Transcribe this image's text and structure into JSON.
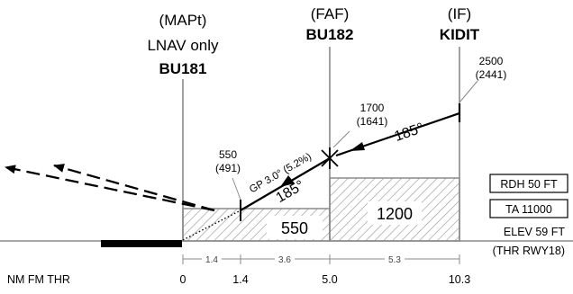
{
  "fixes": {
    "mapt": {
      "role": "(MAPt)",
      "note": "LNAV only",
      "name": "BU181",
      "altitude": "550",
      "altitude_paren": "(491)"
    },
    "faf": {
      "role": "(FAF)",
      "name": "BU182",
      "altitude": "1700",
      "altitude_paren": "(1641)"
    },
    "if": {
      "role": "(IF)",
      "name": "KIDIT",
      "altitude": "2500",
      "altitude_paren": "(2441)"
    }
  },
  "courses": {
    "intermediate": "185°",
    "final": "185°"
  },
  "glidepath": "GP 3.0° (5.2%)",
  "minimum_altitudes": {
    "final_segment": "550",
    "intermediate_segment": "1200"
  },
  "info_boxes": {
    "rdh": "RDH 50 FT",
    "ta": "TA 11000"
  },
  "elevation": {
    "elev": "ELEV 59 FT",
    "ref": "(THR RWY18)"
  },
  "distance_scale": {
    "caption": "NM FM THR",
    "marks": [
      "0",
      "1.4",
      "5.0",
      "10.3"
    ],
    "segments": [
      "1.4",
      "3.6",
      "5.3"
    ]
  },
  "colors": {
    "ink": "#000000",
    "structure": "#8a8a8a",
    "hatch": "#999999"
  }
}
